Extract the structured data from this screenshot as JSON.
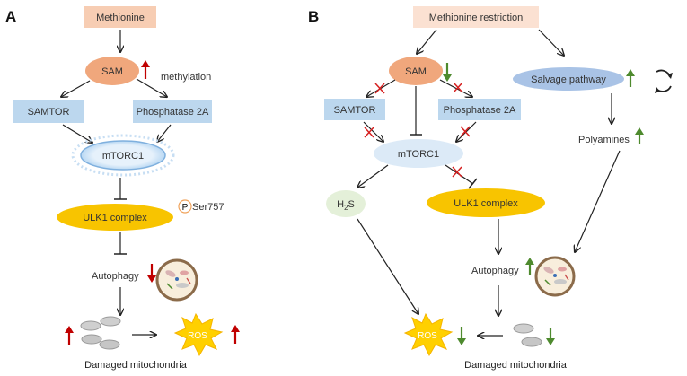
{
  "panels": {
    "a": {
      "label": "A"
    },
    "b": {
      "label": "B"
    }
  },
  "panel_a": {
    "methionine": "Methionine",
    "sam": "SAM",
    "methylation": "methylation",
    "samtor": "SAMTOR",
    "phosphatase": "Phosphatase 2A",
    "mtorc1": "mTORC1",
    "ulk1": "ULK1 complex",
    "phospho_symbol": "P",
    "phospho_site": "Ser757",
    "autophagy": "Autophagy",
    "ros": "ROS",
    "damaged": "Damaged mitochondria"
  },
  "panel_b": {
    "restriction": "Methionine restriction",
    "sam": "SAM",
    "salvage": "Salvage pathway",
    "samtor": "SAMTOR",
    "phosphatase": "Phosphatase 2A",
    "mtorc1": "mTORC1",
    "h2s": "H",
    "h2s_sub": "2",
    "h2s_tail": "S",
    "ulk1": "ULK1 complex",
    "polyamines": "Polyamines",
    "autophagy": "Autophagy",
    "ros": "ROS",
    "damaged": "Damaged mitochondria"
  },
  "colors": {
    "methionine_box": "#f7cdb3",
    "restriction_box": "#fbe1d2",
    "sam_oval": "#f0a77c",
    "sam_oval_b": "#f5c3a6",
    "blue_box": "#bcd7ee",
    "mtorc1_fill": "#dceaf7",
    "ulk1": "#f8c400",
    "h2s": "#e4f0d9",
    "salvage": "#a9c3e6",
    "ros": "#ffd000",
    "up_red": "#c00000",
    "green": "#4e8a2e",
    "inhibit_x": "#d62020"
  }
}
